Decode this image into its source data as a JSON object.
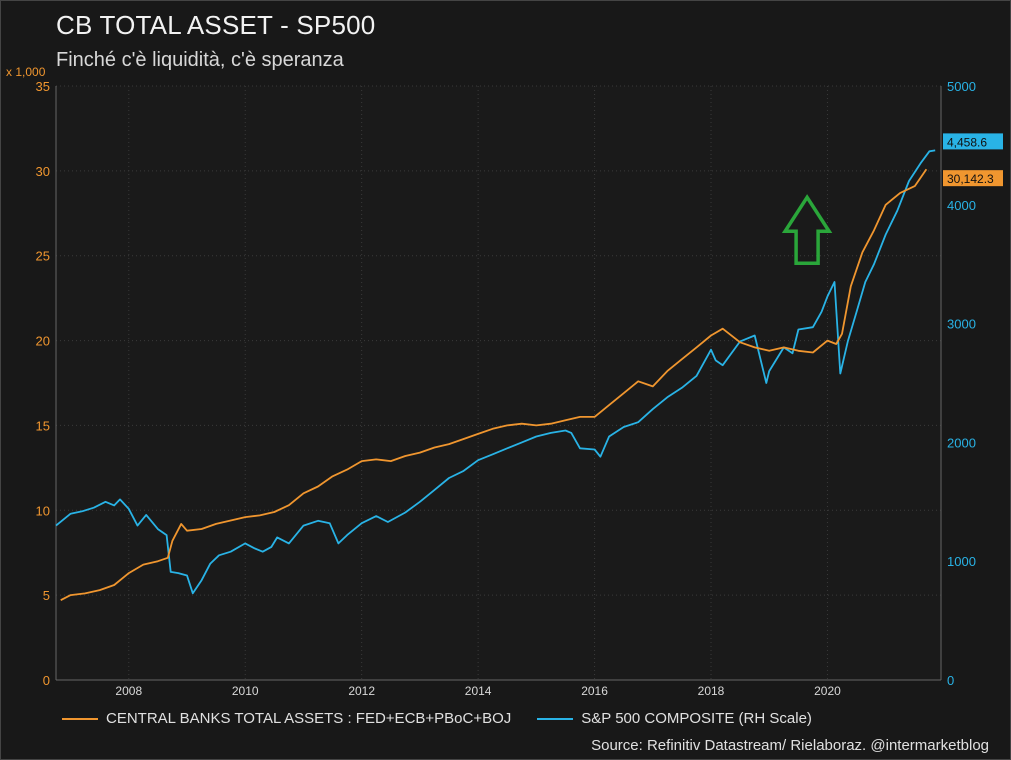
{
  "header": {
    "title": "CB TOTAL ASSET - SP500",
    "subtitle": "Finché c'è liquidità, c'è speranza"
  },
  "colors": {
    "background": "#1a1a1a",
    "grid": "#3a3a3a",
    "cb": "#f0962f",
    "sp": "#29b3e6",
    "arrow": "#2aa63a"
  },
  "legend": {
    "cb_label": "CENTRAL BANKS TOTAL ASSETS : FED+ECB+PBoC+BOJ",
    "sp_label": "S&P 500 COMPOSITE (RH Scale)"
  },
  "source": "Source: Refinitiv Datastream/ Rielaboraz. @intermarketblog",
  "chart_data": {
    "type": "line",
    "grid": true,
    "annotation": "green-up-arrow",
    "x_ticks": [
      "2008",
      "2010",
      "2012",
      "2014",
      "2016",
      "2018",
      "2020"
    ],
    "xlim": [
      2006.75,
      2021.95
    ],
    "y_left": {
      "unit_label": "x 1,000",
      "ticks": [
        "0",
        "5",
        "10",
        "15",
        "20",
        "25",
        "30",
        "35"
      ],
      "ylim": [
        0,
        35
      ]
    },
    "y_right": {
      "ticks": [
        "0",
        "1000",
        "2000",
        "3000",
        "4000",
        "5000"
      ],
      "ylim": [
        0,
        5000
      ]
    },
    "series": [
      {
        "name": "CENTRAL BANKS TOTAL ASSETS : FED+ECB+PBoC+BOJ",
        "axis": "left",
        "last_value_label": "30,142.3",
        "x": [
          2006.83,
          2007.0,
          2007.25,
          2007.5,
          2007.75,
          2008.0,
          2008.25,
          2008.5,
          2008.67,
          2008.75,
          2008.9,
          2009.0,
          2009.25,
          2009.5,
          2009.75,
          2010.0,
          2010.25,
          2010.5,
          2010.75,
          2011.0,
          2011.25,
          2011.5,
          2011.75,
          2012.0,
          2012.25,
          2012.5,
          2012.75,
          2013.0,
          2013.25,
          2013.5,
          2013.75,
          2014.0,
          2014.25,
          2014.5,
          2014.75,
          2015.0,
          2015.25,
          2015.5,
          2015.75,
          2016.0,
          2016.25,
          2016.5,
          2016.75,
          2017.0,
          2017.25,
          2017.5,
          2017.75,
          2018.0,
          2018.2,
          2018.5,
          2018.75,
          2019.0,
          2019.25,
          2019.5,
          2019.75,
          2020.0,
          2020.15,
          2020.25,
          2020.4,
          2020.6,
          2020.8,
          2021.0,
          2021.25,
          2021.5,
          2021.7
        ],
        "y": [
          4.7,
          5.0,
          5.1,
          5.3,
          5.6,
          6.3,
          6.8,
          7.0,
          7.2,
          8.2,
          9.2,
          8.8,
          8.9,
          9.2,
          9.4,
          9.6,
          9.7,
          9.9,
          10.3,
          11.0,
          11.4,
          12.0,
          12.4,
          12.9,
          13.0,
          12.9,
          13.2,
          13.4,
          13.7,
          13.9,
          14.2,
          14.5,
          14.8,
          15.0,
          15.1,
          15.0,
          15.1,
          15.3,
          15.5,
          15.5,
          16.2,
          16.9,
          17.6,
          17.3,
          18.2,
          18.9,
          19.6,
          20.3,
          20.7,
          19.9,
          19.6,
          19.4,
          19.6,
          19.4,
          19.3,
          20.0,
          19.8,
          20.4,
          23.2,
          25.2,
          26.5,
          28.0,
          28.7,
          29.1,
          30.1
        ]
      },
      {
        "name": "S&P 500 COMPOSITE (RH Scale)",
        "axis": "right",
        "last_value_label": "4,458.6",
        "x": [
          2006.75,
          2007.0,
          2007.2,
          2007.4,
          2007.6,
          2007.75,
          2007.85,
          2008.0,
          2008.15,
          2008.3,
          2008.5,
          2008.65,
          2008.72,
          2008.85,
          2009.0,
          2009.1,
          2009.25,
          2009.4,
          2009.55,
          2009.75,
          2010.0,
          2010.15,
          2010.3,
          2010.45,
          2010.55,
          2010.75,
          2011.0,
          2011.25,
          2011.45,
          2011.6,
          2011.75,
          2012.0,
          2012.25,
          2012.45,
          2012.75,
          2013.0,
          2013.25,
          2013.5,
          2013.75,
          2014.0,
          2014.25,
          2014.5,
          2014.75,
          2015.0,
          2015.25,
          2015.5,
          2015.6,
          2015.75,
          2016.0,
          2016.1,
          2016.25,
          2016.5,
          2016.75,
          2017.0,
          2017.25,
          2017.5,
          2017.75,
          2018.0,
          2018.08,
          2018.2,
          2018.5,
          2018.75,
          2018.95,
          2019.0,
          2019.25,
          2019.4,
          2019.5,
          2019.75,
          2019.9,
          2020.0,
          2020.12,
          2020.22,
          2020.35,
          2020.5,
          2020.65,
          2020.8,
          2021.0,
          2021.2,
          2021.4,
          2021.6,
          2021.75,
          2021.85
        ],
        "y": [
          1300,
          1400,
          1420,
          1450,
          1500,
          1470,
          1520,
          1440,
          1300,
          1390,
          1270,
          1220,
          910,
          900,
          880,
          730,
          840,
          980,
          1050,
          1080,
          1150,
          1110,
          1080,
          1120,
          1200,
          1150,
          1300,
          1340,
          1320,
          1150,
          1220,
          1320,
          1380,
          1330,
          1410,
          1500,
          1600,
          1700,
          1760,
          1850,
          1900,
          1950,
          2000,
          2050,
          2080,
          2100,
          2080,
          1950,
          1940,
          1880,
          2050,
          2130,
          2170,
          2280,
          2380,
          2460,
          2560,
          2780,
          2690,
          2650,
          2850,
          2900,
          2500,
          2600,
          2800,
          2750,
          2950,
          2970,
          3100,
          3230,
          3350,
          2580,
          2850,
          3100,
          3350,
          3500,
          3750,
          3950,
          4200,
          4350,
          4450,
          4458
        ]
      }
    ]
  }
}
